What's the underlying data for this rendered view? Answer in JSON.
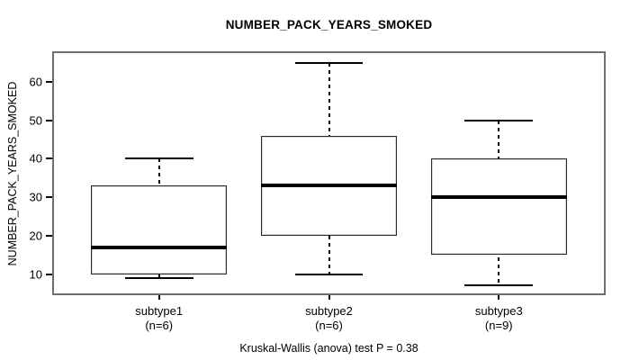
{
  "chart_data": {
    "type": "boxplot",
    "title": "NUMBER_PACK_YEARS_SMOKED",
    "xlabel": "",
    "ylabel": "NUMBER_PACK_YEARS_SMOKED",
    "footer": "Kruskal-Wallis (anova) test P = 0.38",
    "p_value": 0.38,
    "ylim": [
      5,
      67.5
    ],
    "yticks": [
      10,
      20,
      30,
      40,
      50,
      60
    ],
    "grid": false,
    "legend": "none",
    "groups": [
      {
        "label": "subtype1",
        "sublabel": "(n=6)",
        "n": 6,
        "whisker_low": 9,
        "q1": 10,
        "median": 17,
        "q3": 33,
        "whisker_high": 40
      },
      {
        "label": "subtype2",
        "sublabel": "(n=6)",
        "n": 6,
        "whisker_low": 10,
        "q1": 20,
        "median": 33,
        "q3": 46,
        "whisker_high": 65
      },
      {
        "label": "subtype3",
        "sublabel": "(n=9)",
        "n": 9,
        "whisker_low": 7,
        "q1": 15,
        "median": 30,
        "q3": 40,
        "whisker_high": 50
      }
    ],
    "colors": {
      "background": "#ffffff",
      "frame": "#6e6e6e",
      "box_border": "#2a2a2a",
      "box_fill": "#ffffff",
      "median": "#000000",
      "whisker": "#000000",
      "text": "#000000"
    }
  }
}
